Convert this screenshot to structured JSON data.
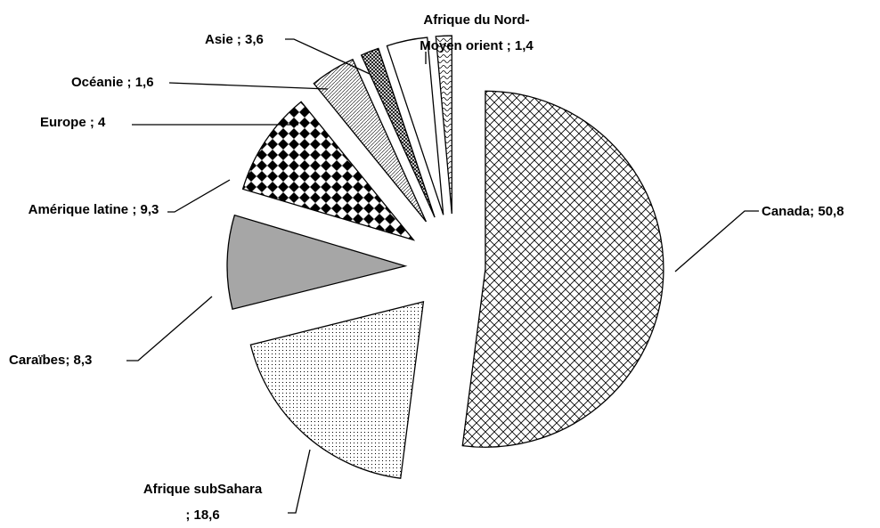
{
  "chart_data": {
    "type": "pie",
    "categories": [
      "Canada;",
      "Afrique subSahara ;",
      "Caraïbes;",
      "Amérique latine ;",
      "Europe ;",
      "Océanie ;",
      "Asie ;",
      "Afrique du Nord-Moyen orient ;"
    ],
    "values": [
      50.8,
      18.6,
      8.3,
      9.3,
      4,
      1.6,
      3.6,
      1.4
    ],
    "value_labels": [
      "50,8",
      "18,6",
      "8,3",
      "9,3",
      "4",
      "1,6",
      "3,6",
      "1,4"
    ],
    "colors": [
      "#ffffff",
      "#ffffff",
      "#a6a6a6",
      "#ffffff",
      "#ffffff",
      "#ffffff",
      "#ffffff",
      "#ffffff"
    ],
    "patterns": [
      "crosshatch",
      "dots",
      "solid",
      "checker",
      "diagonal",
      "fine-crosshatch",
      "none",
      "wave"
    ]
  }
}
